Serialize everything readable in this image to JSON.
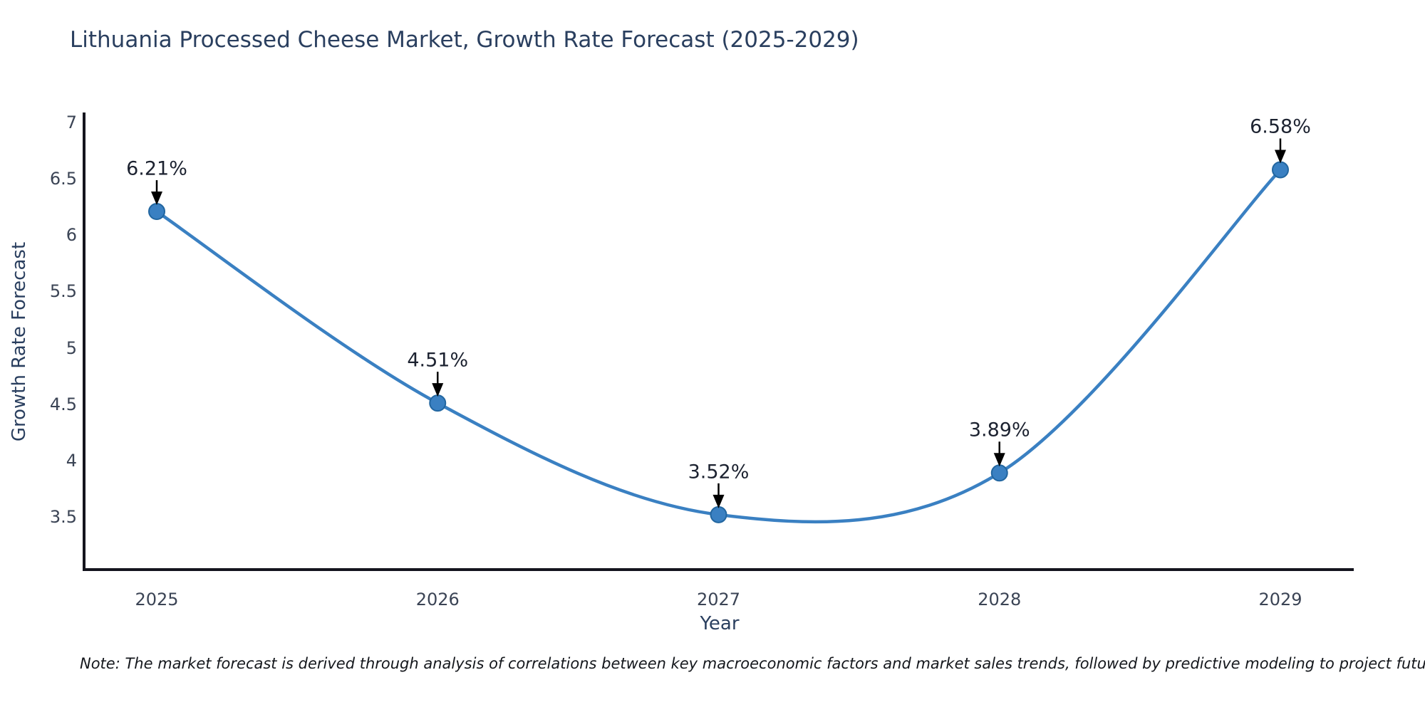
{
  "page": {
    "background_color": "#ffffff"
  },
  "chart": {
    "title": "Lithuania Processed Cheese Market, Growth Rate Forecast (2025-2029)",
    "xlabel": "Year",
    "ylabel": "Growth Rate Forecast",
    "note": "Note: The market forecast is derived through analysis of correlations between key macroeconomic factors and market sales trends, followed by predictive modeling to project future sales"
  },
  "chart_data": {
    "type": "line",
    "title": "Lithuania Processed Cheese Market, Growth Rate Forecast (2025-2029)",
    "xlabel": "Year",
    "ylabel": "Growth Rate Forecast",
    "x": [
      2025,
      2026,
      2027,
      2028,
      2029
    ],
    "x_tick_labels": [
      "2025",
      "2026",
      "2027",
      "2028",
      "2029"
    ],
    "values": [
      6.21,
      4.51,
      3.52,
      3.89,
      6.58
    ],
    "point_labels": [
      "6.21%",
      "4.51%",
      "3.52%",
      "3.89%",
      "6.58%"
    ],
    "y_tick_labels": [
      "7",
      "6.5",
      "6",
      "5.5",
      "5",
      "4.5",
      "4",
      "3.5"
    ],
    "y_tick_values": [
      7,
      6.5,
      6,
      5.5,
      5,
      4.5,
      4,
      3.5
    ],
    "ylim": [
      3.1,
      7.0
    ],
    "grid": false,
    "legend": null,
    "smooth_curve": true,
    "colors": {
      "line": "#3a80c2",
      "marker_fill": "#3a80c2",
      "marker_edge": "#2266a0",
      "axis_line": "#14141e",
      "annotation_text": "#1c2230",
      "annotation_arrow": "#000000",
      "tick_text": "#3b4455",
      "title_text": "#2a3f5f"
    }
  }
}
